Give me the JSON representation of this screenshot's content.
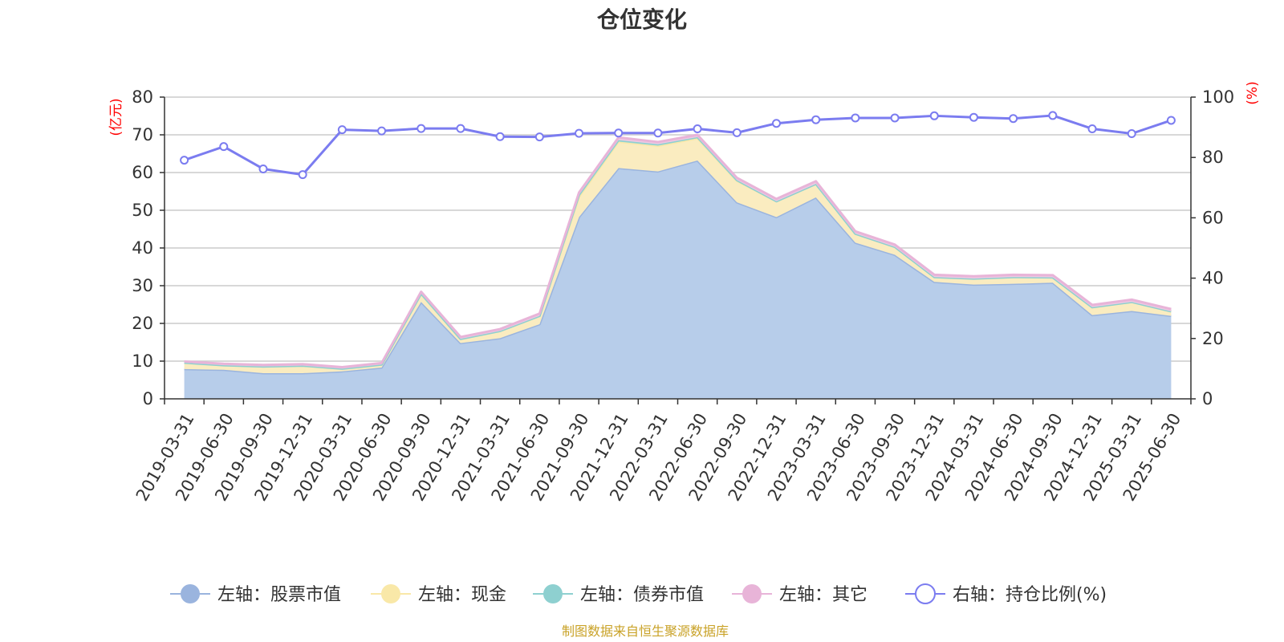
{
  "chart_data": {
    "type": "area",
    "title": "仓位变化",
    "left_axis_unit": "(亿元)",
    "right_axis_unit": "(%)",
    "ylim_left": [
      0,
      80
    ],
    "yticks_left": [
      0,
      10,
      20,
      30,
      40,
      50,
      60,
      70,
      80
    ],
    "ylim_right": [
      0,
      100
    ],
    "yticks_right": [
      0,
      20,
      40,
      60,
      80,
      100
    ],
    "grid": true,
    "legend_position": "bottom",
    "categories": [
      "2019-03-31",
      "2019-06-30",
      "2019-09-30",
      "2019-12-31",
      "2020-03-31",
      "2020-06-30",
      "2020-09-30",
      "2020-12-31",
      "2021-03-31",
      "2021-06-30",
      "2021-09-30",
      "2021-12-31",
      "2022-03-31",
      "2022-06-30",
      "2022-09-30",
      "2022-12-31",
      "2023-03-31",
      "2023-06-30",
      "2023-09-30",
      "2023-12-31",
      "2024-03-31",
      "2024-06-30",
      "2024-09-30",
      "2024-12-31",
      "2025-03-31",
      "2025-06-30"
    ],
    "series": [
      {
        "name": "左轴：股票市值",
        "axis": "left",
        "kind": "stacked-area",
        "color": "#9ab4de",
        "fill": "#b7cdea",
        "values": [
          7.9,
          7.7,
          6.8,
          6.8,
          7.3,
          8.3,
          25.7,
          14.8,
          16.1,
          19.8,
          48.2,
          61.2,
          60.3,
          63.2,
          52.1,
          48.2,
          53.4,
          41.4,
          38.2,
          31.0,
          30.3,
          30.5,
          30.8,
          22.2,
          23.3,
          22.0
        ]
      },
      {
        "name": "左轴：现金",
        "axis": "left",
        "kind": "stacked-area",
        "color": "#f9e8a8",
        "fill": "#faecc0",
        "values": [
          1.7,
          1.2,
          1.8,
          2.0,
          0.7,
          0.8,
          2.2,
          1.1,
          1.9,
          2.2,
          5.4,
          7.0,
          6.8,
          5.9,
          5.7,
          4.2,
          3.6,
          2.4,
          2.1,
          1.3,
          1.6,
          1.8,
          1.4,
          2.1,
          2.4,
          1.2
        ]
      },
      {
        "name": "左轴：债券市值",
        "axis": "left",
        "kind": "stacked-area",
        "color": "#8ed0d0",
        "fill": "#a7dcd9",
        "values": [
          0,
          0,
          0,
          0,
          0,
          0,
          0,
          0,
          0,
          0,
          0.5,
          0.4,
          0.4,
          0.3,
          0.2,
          0,
          0,
          0,
          0,
          0,
          0,
          0,
          0,
          0,
          0,
          0
        ]
      },
      {
        "name": "左轴：其它",
        "axis": "left",
        "kind": "stacked-area",
        "color": "#e8b4d8",
        "fill": "#efc9e3",
        "values": [
          0.3,
          0.4,
          0.4,
          0.4,
          0.4,
          0.4,
          0.5,
          0.5,
          0.5,
          0.6,
          0.6,
          0.7,
          0.6,
          0.6,
          0.6,
          0.6,
          0.7,
          0.6,
          0.6,
          0.6,
          0.6,
          0.6,
          0.6,
          0.6,
          0.6,
          0.6
        ]
      },
      {
        "name": "右轴：持仓比例(%)",
        "axis": "right",
        "kind": "line",
        "color": "#7b7cf0",
        "values": [
          79.1,
          83.6,
          76.2,
          74.3,
          89.2,
          88.8,
          89.6,
          89.6,
          86.9,
          86.8,
          88.0,
          88.1,
          88.1,
          89.5,
          88.2,
          91.3,
          92.5,
          93.1,
          93.1,
          93.8,
          93.3,
          92.9,
          93.9,
          89.5,
          87.9,
          92.3
        ]
      }
    ],
    "source_note": "制图数据来自恒生聚源数据库"
  }
}
